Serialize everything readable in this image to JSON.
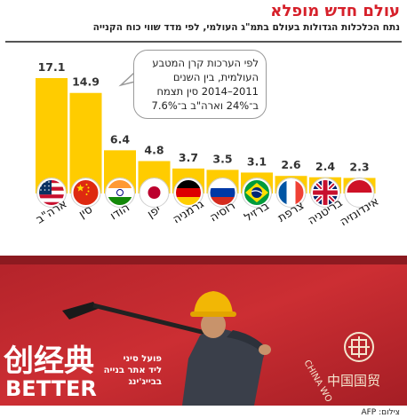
{
  "header": {
    "title": "עולם חדש מופלא",
    "subtitle": "נתח הכלכלות הגדולות בעולם בתמ\"ג העולמי, לפי מדד שווי כוח הקנייה"
  },
  "callout": {
    "lines": [
      "לפי הערכות קרן המטבע",
      "העולמית, בין השנים",
      "2011–2014 סין תצמח",
      "ב־24% וארה\"ב ב־7.6%"
    ]
  },
  "chart_data": {
    "type": "bar",
    "unit": "%",
    "categories": [
      "ארה\"ב",
      "סין",
      "הודו",
      "יפן",
      "גרמניה",
      "רוסיה",
      "ברזיל",
      "צרפת",
      "בריטניה",
      "אינדונזיה"
    ],
    "values": [
      17.1,
      14.9,
      6.4,
      4.8,
      3.7,
      3.5,
      3.1,
      2.6,
      2.4,
      2.3
    ],
    "value_labels": [
      "17.1",
      "14.9",
      "6.4",
      "4.8",
      "3.7",
      "3.5",
      "3.1",
      "2.6",
      "2.4",
      "2.3"
    ],
    "flags": [
      "usa",
      "china",
      "india",
      "japan",
      "germany",
      "russia",
      "brazil",
      "france",
      "uk",
      "indonesia"
    ],
    "ylim": [
      0,
      17.1
    ],
    "bar_color": "#ffcc00",
    "value_label_color": "#333333"
  },
  "photo": {
    "caption_lines": [
      "פועל סיני",
      "ליד אתר בנייה",
      "בבייג'ינג"
    ],
    "sign_text_cn": "创经典",
    "sign_text_en": "BETTER",
    "bank_text_cn": "中国国贸",
    "bank_text_en": "CHINA WO",
    "credit": "צילום: AFP",
    "colors": {
      "background": "#c72a2f",
      "helmet": "#f2b705",
      "sign": "#ffffff"
    }
  }
}
